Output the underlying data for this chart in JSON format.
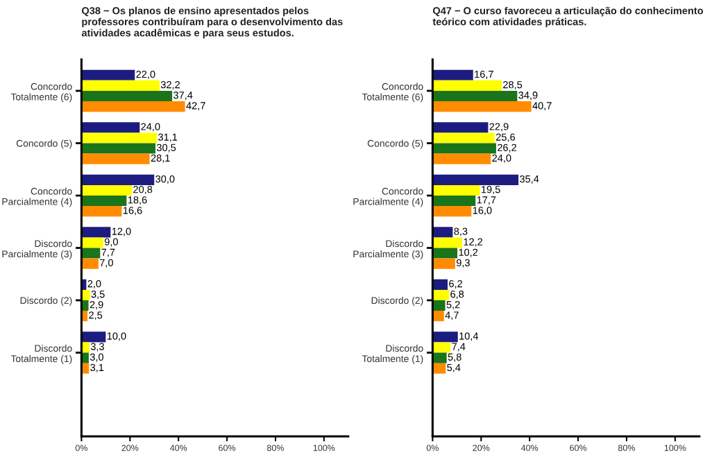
{
  "chart_data": [
    {
      "type": "bar",
      "orientation": "horizontal",
      "title": "Q38 − Os planos de ensino apresentados pelos\nprofessores contribuíram para o desenvolvimento das\natividades acadêmicas e para seus estudos.",
      "categories": [
        "Concordo\nTotalmente (6)",
        "Concordo (5)",
        "Concordo\nParcialmente (4)",
        "Discordo\nParcialmente (3)",
        "Discordo (2)",
        "Discordo\nTotalmente (1)"
      ],
      "series": [
        {
          "color": "#1c1c80",
          "values": [
            22.0,
            24.0,
            30.0,
            12.0,
            2.0,
            10.0
          ],
          "value_labels": [
            "22,0",
            "24,0",
            "30,0",
            "12,0",
            "2,0",
            "10,0"
          ]
        },
        {
          "color": "#ffff00",
          "values": [
            32.2,
            31.1,
            20.8,
            9.0,
            3.5,
            3.3
          ],
          "value_labels": [
            "32,2",
            "31,1",
            "20,8",
            "9,0",
            "3,5",
            "3,3"
          ]
        },
        {
          "color": "#1a741a",
          "values": [
            37.4,
            30.5,
            18.6,
            7.7,
            2.9,
            3.0
          ],
          "value_labels": [
            "37,4",
            "30,5",
            "18,6",
            "7,7",
            "2,9",
            "3,0"
          ]
        },
        {
          "color": "#ff8c00",
          "values": [
            42.7,
            28.1,
            16.6,
            7.0,
            2.5,
            3.1
          ],
          "value_labels": [
            "42,7",
            "28,1",
            "16,6",
            "7,0",
            "2,5",
            "3,1"
          ]
        }
      ],
      "xlim": [
        0,
        110
      ],
      "xticks": [
        {
          "value": 0,
          "label": "0%"
        },
        {
          "value": 20,
          "label": "20%"
        },
        {
          "value": 40,
          "label": "40%"
        },
        {
          "value": 60,
          "label": "60%"
        },
        {
          "value": 80,
          "label": "80%"
        },
        {
          "value": 100,
          "label": "100%"
        }
      ],
      "grid": false,
      "legend": false
    },
    {
      "type": "bar",
      "orientation": "horizontal",
      "title": "Q47 − O curso favoreceu a articulação do conhecimento\nteórico com atividades práticas.",
      "categories": [
        "Concordo\nTotalmente (6)",
        "Concordo (5)",
        "Concordo\nParcialmente (4)",
        "Discordo\nParcialmente (3)",
        "Discordo (2)",
        "Discordo\nTotalmente (1)"
      ],
      "series": [
        {
          "color": "#1c1c80",
          "values": [
            16.7,
            22.9,
            35.4,
            8.3,
            6.2,
            10.4
          ],
          "value_labels": [
            "16,7",
            "22,9",
            "35,4",
            "8,3",
            "6,2",
            "10,4"
          ]
        },
        {
          "color": "#ffff00",
          "values": [
            28.5,
            25.6,
            19.5,
            12.2,
            6.8,
            7.4
          ],
          "value_labels": [
            "28,5",
            "25,6",
            "19,5",
            "12,2",
            "6,8",
            "7,4"
          ]
        },
        {
          "color": "#1a741a",
          "values": [
            34.9,
            26.2,
            17.7,
            10.2,
            5.2,
            5.8
          ],
          "value_labels": [
            "34,9",
            "26,2",
            "17,7",
            "10,2",
            "5,2",
            "5,8"
          ]
        },
        {
          "color": "#ff8c00",
          "values": [
            40.7,
            24.0,
            16.0,
            9.3,
            4.7,
            5.4
          ],
          "value_labels": [
            "40,7",
            "24,0",
            "16,0",
            "9,3",
            "4,7",
            "5,4"
          ]
        }
      ],
      "xlim": [
        0,
        110
      ],
      "xticks": [
        {
          "value": 0,
          "label": "0%"
        },
        {
          "value": 20,
          "label": "20%"
        },
        {
          "value": 40,
          "label": "40%"
        },
        {
          "value": 60,
          "label": "60%"
        },
        {
          "value": 80,
          "label": "80%"
        },
        {
          "value": 100,
          "label": "100%"
        }
      ],
      "grid": false,
      "legend": false
    }
  ]
}
